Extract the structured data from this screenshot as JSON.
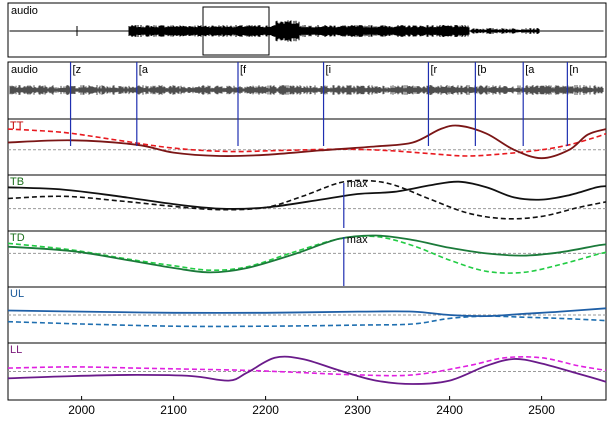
{
  "chart_data": {
    "type": "line",
    "x_range": [
      1920,
      2570
    ],
    "x_ticks": [
      2000,
      2100,
      2200,
      2300,
      2400,
      2500
    ],
    "top_panel": {
      "label": "audio"
    },
    "audio_panel": {
      "label": "audio",
      "segments": [
        {
          "x": 1988,
          "label": "[z"
        },
        {
          "x": 2060,
          "label": "[a"
        },
        {
          "x": 2170,
          "label": "[f"
        },
        {
          "x": 2263,
          "label": "[i"
        },
        {
          "x": 2377,
          "label": "[r"
        },
        {
          "x": 2428,
          "label": "[b"
        },
        {
          "x": 2480,
          "label": "[a"
        },
        {
          "x": 2528,
          "label": "[n"
        }
      ]
    },
    "panels": [
      {
        "label": "TT",
        "label_color": "#c00000",
        "solid_color": "#7b1616",
        "dashed_color": "#e8191f",
        "baseline": 0.55,
        "solid": [
          [
            1920,
            0.42
          ],
          [
            1990,
            0.38
          ],
          [
            2060,
            0.46
          ],
          [
            2100,
            0.6
          ],
          [
            2150,
            0.66
          ],
          [
            2200,
            0.64
          ],
          [
            2260,
            0.56
          ],
          [
            2320,
            0.49
          ],
          [
            2360,
            0.42
          ],
          [
            2390,
            0.18
          ],
          [
            2410,
            0.12
          ],
          [
            2440,
            0.26
          ],
          [
            2470,
            0.55
          ],
          [
            2500,
            0.7
          ],
          [
            2530,
            0.55
          ],
          [
            2550,
            0.28
          ],
          [
            2570,
            0.18
          ]
        ],
        "dashed": [
          [
            1920,
            0.18
          ],
          [
            1980,
            0.24
          ],
          [
            2040,
            0.38
          ],
          [
            2100,
            0.52
          ],
          [
            2160,
            0.58
          ],
          [
            2220,
            0.56
          ],
          [
            2280,
            0.54
          ],
          [
            2330,
            0.56
          ],
          [
            2380,
            0.62
          ],
          [
            2420,
            0.66
          ],
          [
            2460,
            0.62
          ],
          [
            2500,
            0.55
          ],
          [
            2530,
            0.46
          ],
          [
            2560,
            0.32
          ],
          [
            2570,
            0.26
          ]
        ]
      },
      {
        "label": "TB",
        "label_color": "#1a6e1a",
        "solid_color": "#111111",
        "dashed_color": "#111111",
        "baseline": 0.6,
        "annotation": {
          "x": 2285,
          "text": "max"
        },
        "solid": [
          [
            1920,
            0.22
          ],
          [
            1980,
            0.26
          ],
          [
            2040,
            0.38
          ],
          [
            2100,
            0.52
          ],
          [
            2150,
            0.6
          ],
          [
            2200,
            0.58
          ],
          [
            2260,
            0.44
          ],
          [
            2300,
            0.34
          ],
          [
            2340,
            0.3
          ],
          [
            2380,
            0.18
          ],
          [
            2410,
            0.12
          ],
          [
            2440,
            0.22
          ],
          [
            2470,
            0.4
          ],
          [
            2500,
            0.44
          ],
          [
            2530,
            0.36
          ],
          [
            2560,
            0.22
          ],
          [
            2570,
            0.2
          ]
        ],
        "dashed": [
          [
            1920,
            0.42
          ],
          [
            1980,
            0.38
          ],
          [
            2040,
            0.46
          ],
          [
            2100,
            0.56
          ],
          [
            2150,
            0.62
          ],
          [
            2200,
            0.58
          ],
          [
            2240,
            0.38
          ],
          [
            2280,
            0.14
          ],
          [
            2310,
            0.1
          ],
          [
            2340,
            0.18
          ],
          [
            2380,
            0.44
          ],
          [
            2420,
            0.68
          ],
          [
            2460,
            0.78
          ],
          [
            2500,
            0.74
          ],
          [
            2540,
            0.58
          ],
          [
            2570,
            0.48
          ]
        ]
      },
      {
        "label": "TD",
        "label_color": "#1a6e1a",
        "solid_color": "#1b7a3a",
        "dashed_color": "#22cc44",
        "baseline": 0.4,
        "annotation": {
          "x": 2285,
          "text": "max"
        },
        "solid": [
          [
            1920,
            0.28
          ],
          [
            1990,
            0.36
          ],
          [
            2050,
            0.52
          ],
          [
            2100,
            0.66
          ],
          [
            2140,
            0.74
          ],
          [
            2180,
            0.66
          ],
          [
            2230,
            0.42
          ],
          [
            2280,
            0.14
          ],
          [
            2320,
            0.08
          ],
          [
            2360,
            0.16
          ],
          [
            2400,
            0.3
          ],
          [
            2440,
            0.4
          ],
          [
            2480,
            0.44
          ],
          [
            2520,
            0.38
          ],
          [
            2560,
            0.26
          ],
          [
            2570,
            0.24
          ]
        ],
        "dashed": [
          [
            1920,
            0.22
          ],
          [
            1990,
            0.34
          ],
          [
            2050,
            0.5
          ],
          [
            2100,
            0.62
          ],
          [
            2140,
            0.7
          ],
          [
            2180,
            0.64
          ],
          [
            2230,
            0.38
          ],
          [
            2280,
            0.14
          ],
          [
            2320,
            0.1
          ],
          [
            2360,
            0.26
          ],
          [
            2400,
            0.52
          ],
          [
            2440,
            0.72
          ],
          [
            2480,
            0.74
          ],
          [
            2520,
            0.6
          ],
          [
            2560,
            0.42
          ],
          [
            2570,
            0.38
          ]
        ]
      },
      {
        "label": "UL",
        "label_color": "#1a5a9a",
        "solid_color": "#1f5fa6",
        "dashed_color": "#1f6fb0",
        "baseline": 0.5,
        "solid": [
          [
            1920,
            0.42
          ],
          [
            2000,
            0.44
          ],
          [
            2100,
            0.46
          ],
          [
            2200,
            0.46
          ],
          [
            2300,
            0.44
          ],
          [
            2360,
            0.44
          ],
          [
            2400,
            0.5
          ],
          [
            2440,
            0.52
          ],
          [
            2480,
            0.48
          ],
          [
            2520,
            0.44
          ],
          [
            2570,
            0.38
          ]
        ],
        "dashed": [
          [
            1920,
            0.62
          ],
          [
            2000,
            0.66
          ],
          [
            2100,
            0.7
          ],
          [
            2200,
            0.7
          ],
          [
            2300,
            0.68
          ],
          [
            2360,
            0.66
          ],
          [
            2400,
            0.56
          ],
          [
            2440,
            0.52
          ],
          [
            2480,
            0.54
          ],
          [
            2520,
            0.56
          ],
          [
            2570,
            0.6
          ]
        ]
      },
      {
        "label": "LL",
        "label_color": "#7a1a7a",
        "solid_color": "#6a1b8a",
        "dashed_color": "#e020e0",
        "baseline": 0.5,
        "solid": [
          [
            1920,
            0.62
          ],
          [
            1990,
            0.58
          ],
          [
            2060,
            0.56
          ],
          [
            2120,
            0.58
          ],
          [
            2160,
            0.66
          ],
          [
            2180,
            0.52
          ],
          [
            2210,
            0.26
          ],
          [
            2240,
            0.28
          ],
          [
            2280,
            0.48
          ],
          [
            2320,
            0.66
          ],
          [
            2360,
            0.72
          ],
          [
            2400,
            0.66
          ],
          [
            2440,
            0.4
          ],
          [
            2470,
            0.28
          ],
          [
            2500,
            0.36
          ],
          [
            2540,
            0.54
          ],
          [
            2570,
            0.68
          ]
        ],
        "dashed": [
          [
            1920,
            0.44
          ],
          [
            1990,
            0.42
          ],
          [
            2060,
            0.44
          ],
          [
            2120,
            0.46
          ],
          [
            2180,
            0.48
          ],
          [
            2240,
            0.52
          ],
          [
            2300,
            0.56
          ],
          [
            2360,
            0.56
          ],
          [
            2420,
            0.4
          ],
          [
            2460,
            0.26
          ],
          [
            2500,
            0.26
          ],
          [
            2540,
            0.4
          ],
          [
            2570,
            0.48
          ]
        ]
      }
    ]
  }
}
